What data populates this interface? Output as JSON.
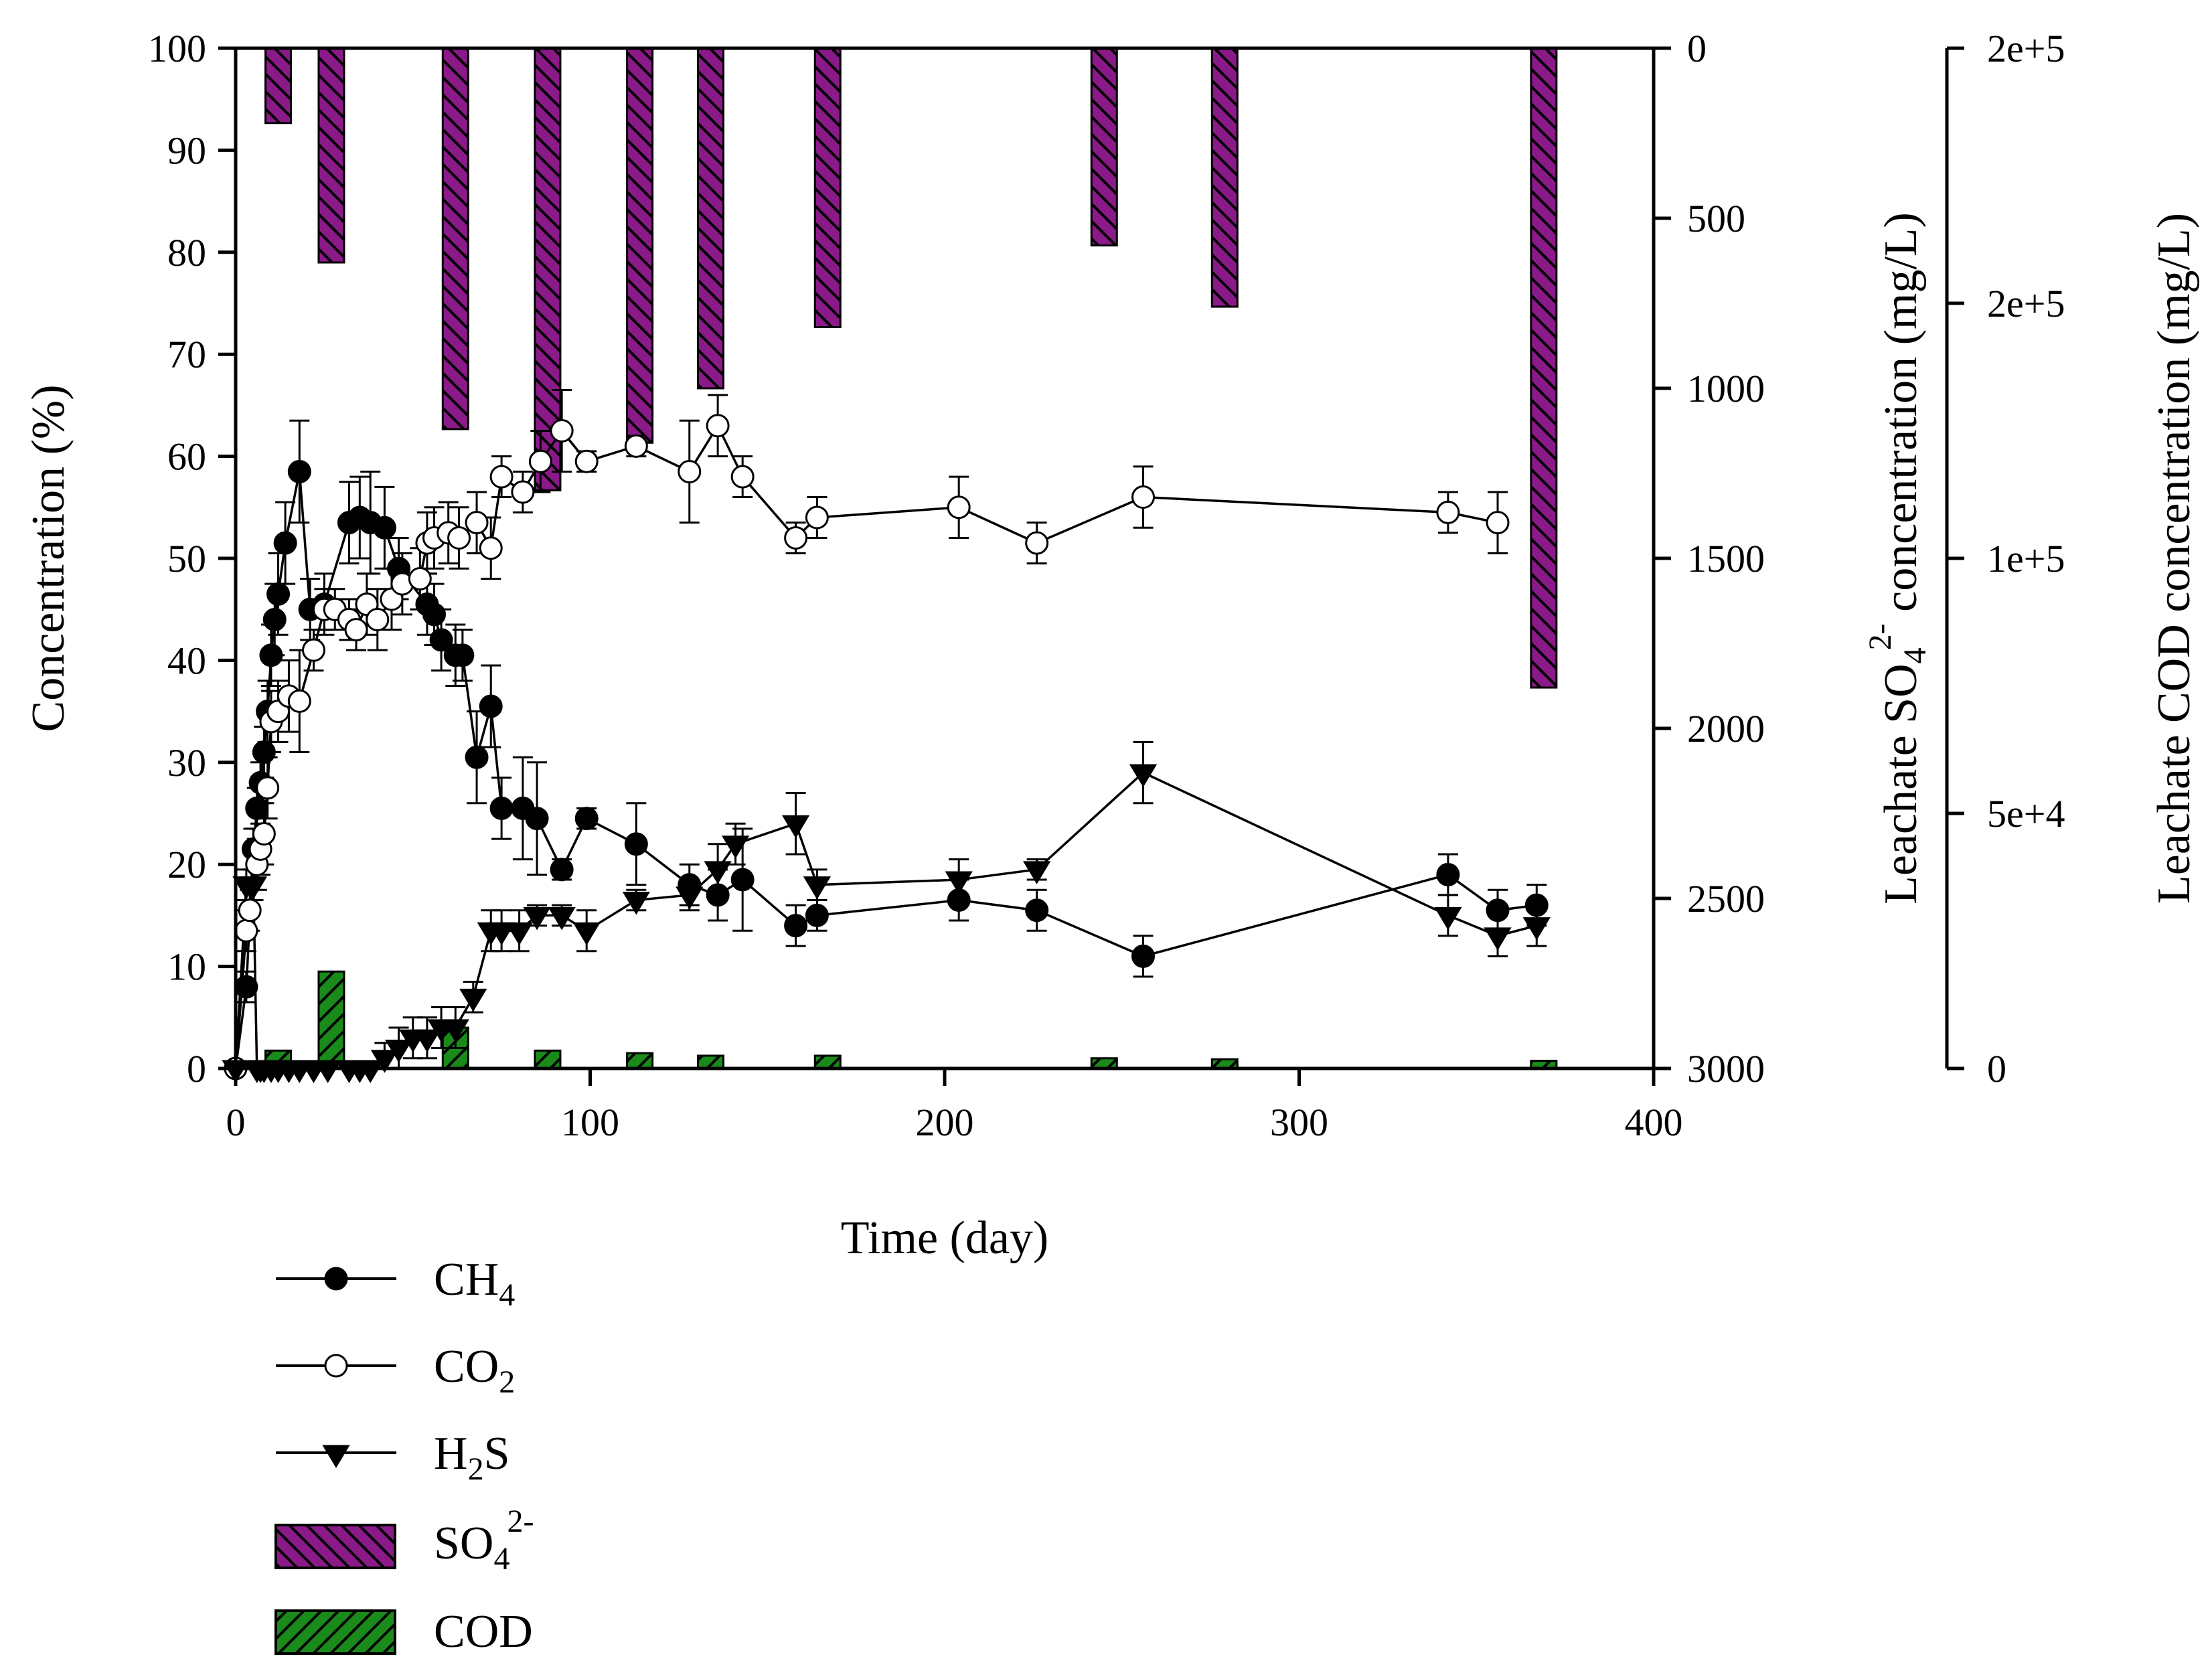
{
  "chart_data": {
    "type": "combo-line-bar",
    "title": "",
    "xlabel": "Time (day)",
    "ylabel": "Concentration (%)",
    "y2label": {
      "pre": "Leachate SO",
      "sub": "4",
      "sup": "2-",
      "post": " concentration (mg/L)"
    },
    "y3label": "Leachate COD concentration (mg/L)",
    "xlim": [
      0,
      400
    ],
    "ylim": [
      0,
      100
    ],
    "y2lim": [
      0,
      3000
    ],
    "y2_inverted": true,
    "y3lim": [
      0,
      200000
    ],
    "x_ticks": [
      "0",
      "100",
      "200",
      "300",
      "400"
    ],
    "y_ticks": [
      "0",
      "10",
      "20",
      "30",
      "40",
      "50",
      "60",
      "70",
      "80",
      "90",
      "100"
    ],
    "y2_ticks": [
      "0",
      "500",
      "1000",
      "1500",
      "2000",
      "2500",
      "3000"
    ],
    "y3_ticks": [
      "0",
      "5e+4",
      "1e+5",
      "2e+5",
      "2e+5"
    ],
    "series": [
      {
        "name": "CH4",
        "label_main": "CH",
        "label_sub": "4",
        "marker": "filled-circle",
        "x": [
          0,
          3,
          5,
          6,
          7,
          8,
          9,
          10,
          11,
          12,
          14,
          18,
          21,
          25,
          32,
          35,
          38,
          42,
          46,
          54,
          56,
          58,
          62,
          64,
          68,
          72,
          75,
          81,
          85,
          92,
          99,
          113,
          128,
          136,
          143,
          158,
          164,
          204,
          226,
          256,
          342,
          356,
          367
        ],
        "y": [
          0,
          8,
          21.5,
          25.5,
          28,
          31,
          35,
          40.5,
          44,
          46.5,
          51.5,
          58.5,
          45,
          45.5,
          53.5,
          54,
          53.5,
          53,
          49,
          45.5,
          44.5,
          42,
          40.5,
          40.5,
          30.5,
          35.5,
          25.5,
          25.5,
          24.5,
          19.5,
          24.5,
          22,
          18,
          17,
          18.5,
          14,
          15,
          16.5,
          15.5,
          11,
          19,
          15.5,
          16
        ],
        "err": [
          0,
          1.5,
          2,
          2,
          2,
          2.5,
          3,
          3,
          3.5,
          4,
          4,
          5,
          3,
          3,
          4,
          4,
          5,
          4,
          3,
          3,
          3,
          3,
          3,
          2.5,
          4.5,
          4,
          3,
          5,
          5.5,
          1,
          1,
          4,
          2,
          2.5,
          5,
          2,
          1.5,
          2,
          2,
          2,
          2,
          2,
          2
        ]
      },
      {
        "name": "CO2",
        "label_main": "CO",
        "label_sub": "2",
        "marker": "open-circle",
        "x": [
          0,
          3,
          4,
          6,
          7,
          8,
          9,
          10,
          12,
          15,
          18,
          22,
          25,
          28,
          32,
          34,
          37,
          40,
          44,
          47,
          52,
          54,
          56,
          60,
          63,
          68,
          72,
          75,
          81,
          86,
          92,
          99,
          113,
          128,
          136,
          143,
          158,
          164,
          204,
          226,
          256,
          342,
          356
        ],
        "y": [
          0,
          13.5,
          15.5,
          20,
          21.5,
          23,
          27.5,
          34,
          35,
          36.5,
          36,
          41,
          45,
          45,
          44,
          43,
          45.5,
          44,
          46,
          47.5,
          48,
          51.5,
          52,
          52.5,
          52,
          53.5,
          51,
          58,
          56.5,
          59.5,
          62.5,
          59.5,
          61,
          58.5,
          63,
          58,
          52,
          54,
          55,
          51.5,
          56,
          54.5,
          53.5
        ],
        "err": [
          0,
          2,
          2,
          2.5,
          2.5,
          3,
          3,
          3,
          3,
          3.5,
          5,
          2,
          2,
          2,
          2,
          2,
          3,
          3,
          3,
          3,
          3,
          3,
          3,
          3,
          3,
          3,
          3,
          2,
          2,
          3,
          4,
          1,
          1,
          5,
          3,
          2,
          1.5,
          2,
          3,
          2,
          3,
          2,
          3
        ]
      },
      {
        "name": "H2S",
        "label_main": "H",
        "label_sub": "2",
        "label_tail": "S",
        "marker": "filled-triangle-down",
        "x": [
          0,
          3,
          5,
          6,
          7,
          8,
          10,
          12,
          15,
          18,
          22,
          26,
          32,
          35,
          38,
          42,
          46,
          50,
          54,
          58,
          62,
          67,
          72,
          75,
          80,
          85,
          92,
          99,
          113,
          128,
          136,
          141,
          158,
          164,
          204,
          226,
          256,
          342,
          356,
          367
        ],
        "y": [
          0,
          18,
          18,
          0,
          0,
          0,
          0,
          0,
          0,
          0,
          0,
          0,
          0,
          0,
          0,
          1,
          2,
          3,
          3,
          4,
          4,
          7,
          13.5,
          13.5,
          13.5,
          15,
          15,
          13.5,
          16.5,
          17,
          19.5,
          22,
          24,
          18,
          18.5,
          19.5,
          29,
          15,
          13,
          14
        ],
        "err": [
          0,
          1.5,
          1.5,
          0,
          0,
          0,
          0,
          0,
          0,
          0,
          0,
          0,
          0,
          0,
          0,
          1.5,
          2,
          2,
          2,
          2,
          2,
          1.5,
          2,
          2,
          2,
          1,
          1,
          2,
          1,
          1.5,
          2.5,
          2,
          3,
          1.5,
          2,
          1,
          3,
          2,
          2,
          2
        ]
      }
    ],
    "bar_series": [
      {
        "name": "SO4 2-",
        "label_main": "SO",
        "label_sub": "4",
        "label_sup": "2-",
        "axis": "y2",
        "fill": "#8b1a89",
        "hatch": "back-diagonal",
        "x": [
          12,
          27,
          62,
          88,
          114,
          134,
          167,
          245,
          279,
          369
        ],
        "values": [
          220,
          630,
          1120,
          1300,
          1160,
          1000,
          820,
          580,
          760,
          1880
        ]
      },
      {
        "name": "COD",
        "label_main": "COD",
        "axis": "y3",
        "fill": "#1a8b1a",
        "hatch": "forward-diagonal",
        "x": [
          12,
          27,
          62,
          88,
          114,
          134,
          167,
          245,
          279,
          369
        ],
        "values": [
          3500,
          19000,
          8000,
          3500,
          3000,
          2500,
          2500,
          2000,
          1800,
          1500
        ]
      }
    ],
    "legend_position": "bottom-left"
  }
}
